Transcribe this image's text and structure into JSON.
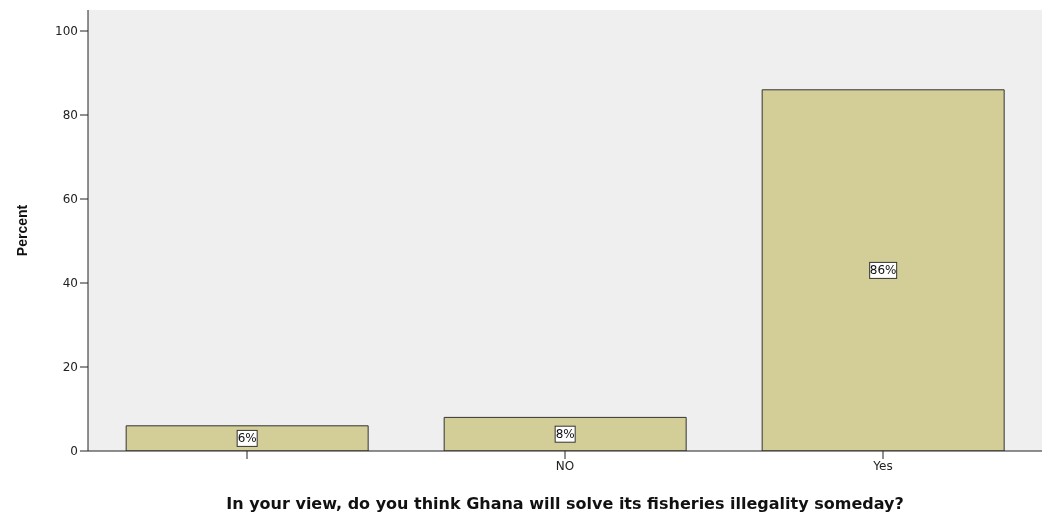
{
  "chart_data": {
    "type": "bar",
    "xlabel": "In your view, do you think Ghana will solve its fisheries illegality someday?",
    "ylabel": "Percent",
    "categories": [
      null,
      "NO",
      "Yes"
    ],
    "values": [
      6,
      8,
      86
    ],
    "value_labels": [
      "6%",
      "8%",
      "86%"
    ],
    "color": "#d3ce97",
    "ylim": [
      0,
      105
    ],
    "yticks": [
      0,
      20,
      40,
      60,
      80,
      100
    ]
  }
}
